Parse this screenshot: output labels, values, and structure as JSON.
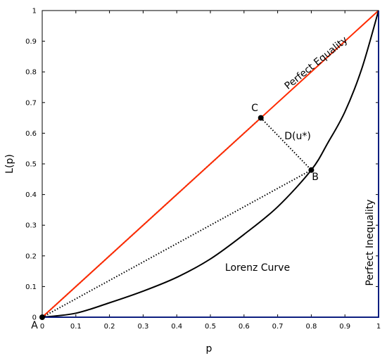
{
  "chart_data": {
    "type": "line",
    "xlabel": "p",
    "ylabel": "L(p)",
    "xlim": [
      0,
      1
    ],
    "ylim": [
      0,
      1
    ],
    "grid": false,
    "x_ticks": [
      0,
      0.1,
      0.2,
      0.3,
      0.4,
      0.5,
      0.6,
      0.7,
      0.8,
      0.9,
      1
    ],
    "y_ticks": [
      0,
      0.1,
      0.2,
      0.3,
      0.4,
      0.5,
      0.6,
      0.7,
      0.8,
      0.9,
      1
    ],
    "x_tick_labels": [
      "0",
      "0.1",
      "0.2",
      "0.3",
      "0.4",
      "0.5",
      "0.6",
      "0.7",
      "0.8",
      "0.9",
      "1"
    ],
    "y_tick_labels": [
      "0",
      "0.1",
      "0.2",
      "0.3",
      "0.4",
      "0.5",
      "0.6",
      "0.7",
      "0.8",
      "0.9",
      "1"
    ],
    "series": [
      {
        "name": "Perfect Equality",
        "color": "#ff2a00",
        "x": [
          0,
          1
        ],
        "y": [
          0,
          1
        ]
      },
      {
        "name": "Lorenz Curve",
        "color": "#000000",
        "x": [
          0,
          0.1,
          0.2,
          0.3,
          0.4,
          0.5,
          0.6,
          0.7,
          0.8,
          0.85,
          0.9,
          0.95,
          1
        ],
        "y": [
          0,
          0.013,
          0.047,
          0.085,
          0.13,
          0.19,
          0.27,
          0.36,
          0.48,
          0.57,
          0.67,
          0.81,
          1
        ]
      },
      {
        "name": "Perfect Inequality",
        "color": "#1a3cff",
        "x": [
          0,
          1,
          1
        ],
        "y": [
          0,
          0,
          1
        ]
      }
    ],
    "dotted_segments": [
      {
        "from": [
          0,
          0
        ],
        "to": [
          0.65,
          0.65
        ]
      },
      {
        "from": [
          0.65,
          0.65
        ],
        "to": [
          0.8,
          0.48
        ]
      },
      {
        "from": [
          0,
          0
        ],
        "to": [
          0.8,
          0.48
        ]
      }
    ],
    "points": [
      {
        "label": "A",
        "x": 0,
        "y": 0
      },
      {
        "label": "C",
        "x": 0.65,
        "y": 0.65
      },
      {
        "label": "B",
        "x": 0.8,
        "y": 0.48
      }
    ],
    "annotations": {
      "perfect_equality": "Perfect Equality",
      "perfect_inequality": "Perfect Inequality",
      "lorenz_curve": "Lorenz Curve",
      "distance": "D(u*)",
      "point_a": "A",
      "point_b": "B",
      "point_c": "C"
    }
  }
}
